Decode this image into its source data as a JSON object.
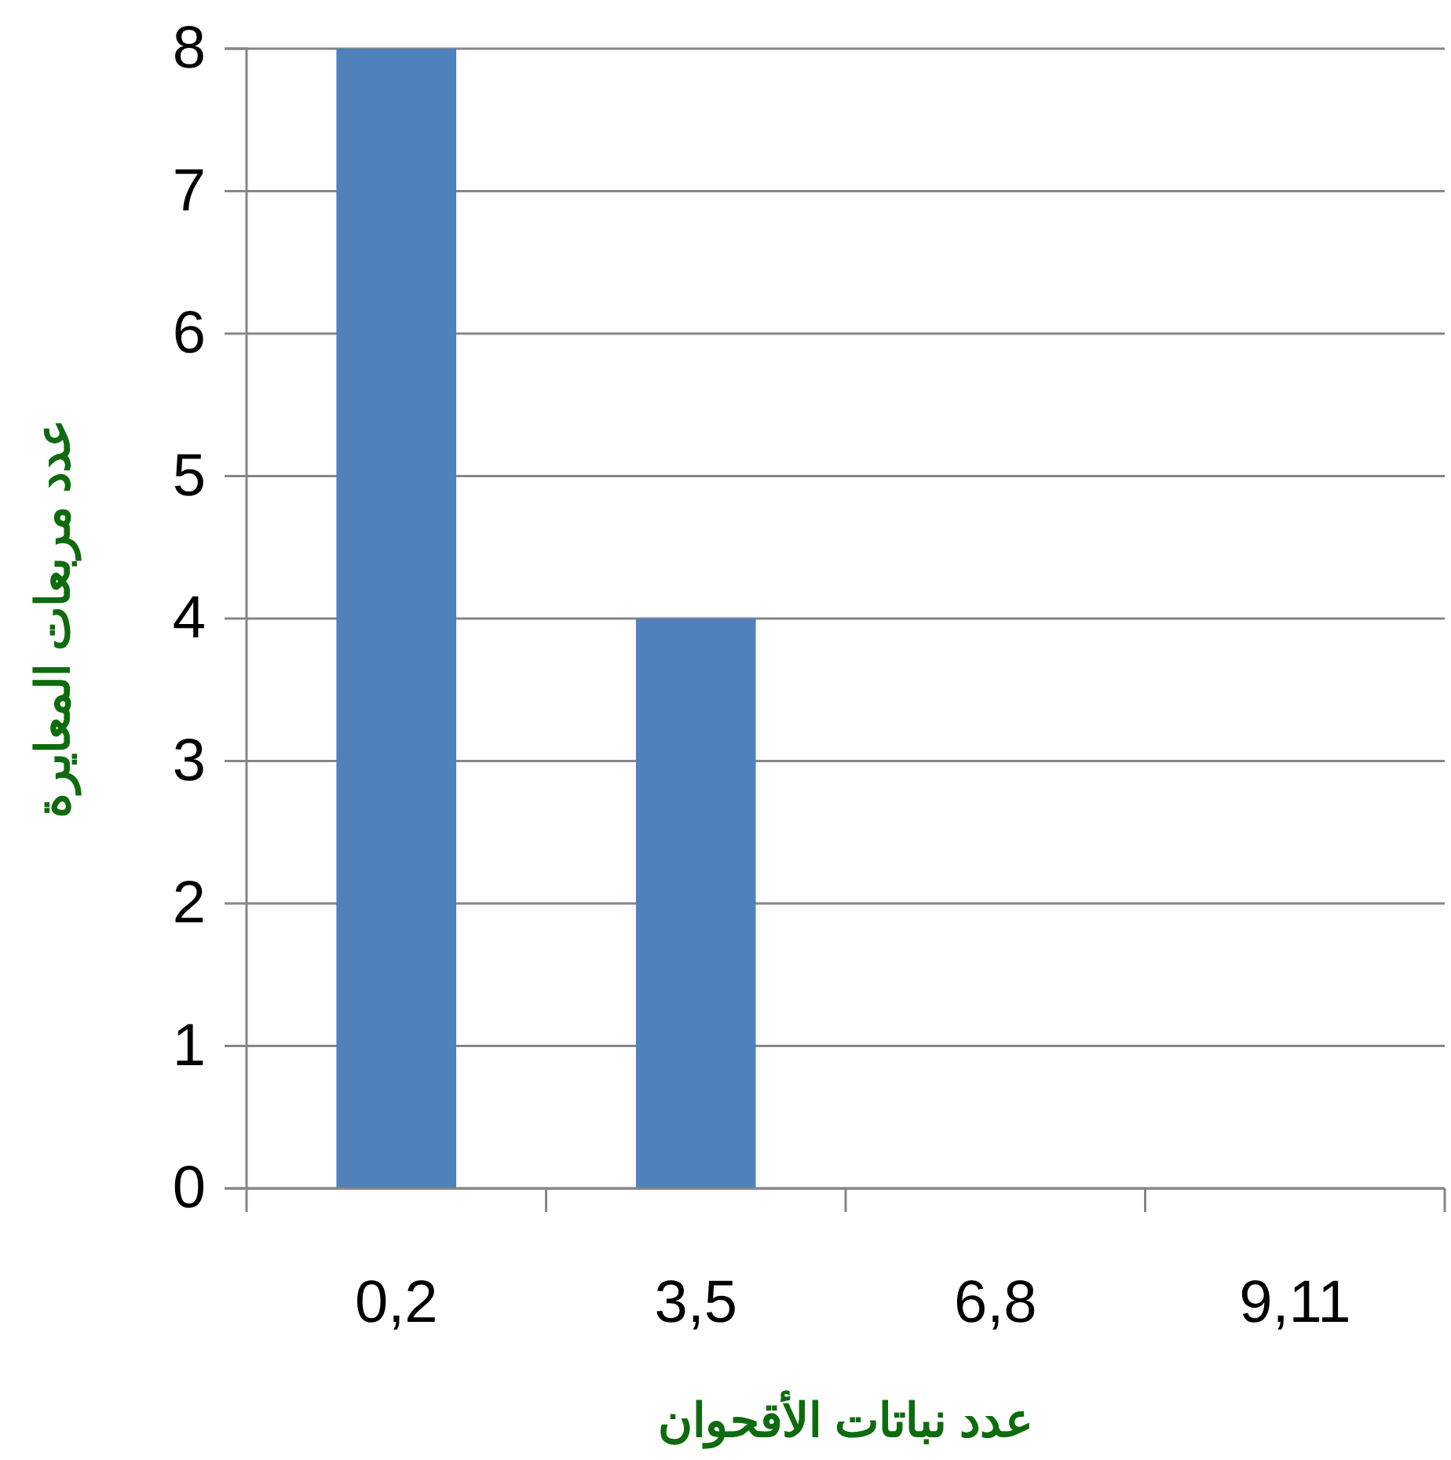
{
  "chart_data": {
    "type": "bar",
    "xlabel": "عدد نباتات الأقحوان",
    "ylabel": "عدد مربعات المعايرة",
    "categories": [
      "0,2",
      "3,5",
      "6,8",
      "9,11"
    ],
    "values": [
      8,
      4,
      0,
      0
    ],
    "color": "#4f81bd",
    "ylim": [
      0,
      8
    ],
    "yticks": [
      0,
      1,
      2,
      3,
      4,
      5,
      6,
      7,
      8
    ],
    "grid": "y"
  }
}
